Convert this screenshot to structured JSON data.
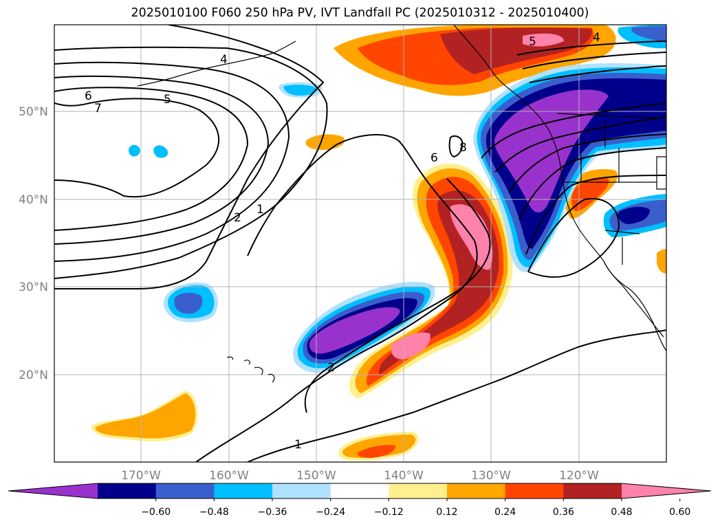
{
  "title": "2025010100 F060 250 hPa PV, IVT Landfall PC (2025010312 - 2025010400)",
  "map": {
    "lat_labels": [
      "50°N",
      "40°N",
      "30°N",
      "20°N"
    ],
    "lon_labels": [
      "170°W",
      "160°W",
      "150°W",
      "140°W",
      "130°W",
      "120°W"
    ],
    "gridlines": true
  },
  "colorbar": {
    "colors": [
      "#9932cc",
      "#00008b",
      "#3a5fcd",
      "#00bfff",
      "#b0e2ff",
      "#ffffff",
      "#fff08f",
      "#ffa500",
      "#ff4500",
      "#b22222",
      "#ff82ab"
    ],
    "tick_labels": [
      "−0.60",
      "−0.48",
      "−0.36",
      "−0.24",
      "−0.12",
      "0.12",
      "0.24",
      "0.36",
      "0.48",
      "0.60"
    ],
    "extend": "both"
  },
  "contours": {
    "labels": [
      "4",
      "5",
      "6",
      "7",
      "2",
      "1",
      "5",
      "6",
      "8",
      "1",
      "2",
      "4"
    ]
  }
}
